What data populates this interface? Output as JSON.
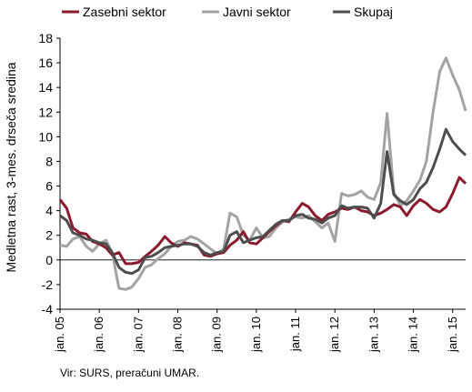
{
  "chart_data": {
    "type": "line",
    "title": "",
    "ylabel": "Medletna rast, 3-mes. drseča sredina",
    "xlabel": "",
    "ylim": [
      -4,
      18
    ],
    "yticks": [
      -4,
      -2,
      0,
      2,
      4,
      6,
      8,
      10,
      12,
      14,
      16,
      18
    ],
    "xlim": [
      2005.0,
      2015.33
    ],
    "x_tick_labels": [
      "jan. 05",
      "jan. 06",
      "jan. 07",
      "jan. 08",
      "jan. 09",
      "jan. 10",
      "jan. 11",
      "jan. 12",
      "jan. 13",
      "jan. 14",
      "jan. 15"
    ],
    "x_tick_values": [
      2005,
      2006,
      2007,
      2008,
      2009,
      2010,
      2011,
      2012,
      2013,
      2014,
      2015
    ],
    "legend_position": "top",
    "grid": false,
    "x": [
      2005.0,
      2005.17,
      2005.33,
      2005.5,
      2005.67,
      2005.83,
      2006.0,
      2006.17,
      2006.33,
      2006.5,
      2006.67,
      2006.83,
      2007.0,
      2007.17,
      2007.33,
      2007.5,
      2007.67,
      2007.83,
      2008.0,
      2008.17,
      2008.33,
      2008.5,
      2008.67,
      2008.83,
      2009.0,
      2009.17,
      2009.33,
      2009.5,
      2009.67,
      2009.83,
      2010.0,
      2010.17,
      2010.33,
      2010.5,
      2010.67,
      2010.83,
      2011.0,
      2011.17,
      2011.33,
      2011.5,
      2011.67,
      2011.83,
      2012.0,
      2012.17,
      2012.33,
      2012.5,
      2012.67,
      2012.83,
      2013.0,
      2013.17,
      2013.33,
      2013.5,
      2013.67,
      2013.83,
      2014.0,
      2014.17,
      2014.33,
      2014.5,
      2014.67,
      2014.83,
      2015.0,
      2015.17,
      2015.33
    ],
    "series": [
      {
        "name": "Zasebni sektor",
        "color": "#8b1a2e",
        "values": [
          4.9,
          4.2,
          2.6,
          2.2,
          2.1,
          1.5,
          1.3,
          1.0,
          0.4,
          0.6,
          -0.3,
          -0.3,
          -0.2,
          0.3,
          0.7,
          1.2,
          1.9,
          1.4,
          1.1,
          1.4,
          1.3,
          1.2,
          0.4,
          0.3,
          0.5,
          0.6,
          1.2,
          1.6,
          2.3,
          1.4,
          1.3,
          1.8,
          2.3,
          2.8,
          3.2,
          3.1,
          3.9,
          4.6,
          4.3,
          3.6,
          3.2,
          3.7,
          3.9,
          4.2,
          4.1,
          4.3,
          4.0,
          3.9,
          3.6,
          3.8,
          4.1,
          4.5,
          4.3,
          3.6,
          4.4,
          4.9,
          4.6,
          4.1,
          3.9,
          4.3,
          5.4,
          6.7,
          6.2
        ]
      },
      {
        "name": "Javni sektor",
        "color": "#a3a3a3",
        "values": [
          1.2,
          1.1,
          1.7,
          1.9,
          1.1,
          0.7,
          1.3,
          1.6,
          0.6,
          -2.3,
          -2.4,
          -2.2,
          -1.5,
          -0.6,
          -0.4,
          0.1,
          0.5,
          1.1,
          1.5,
          1.6,
          1.9,
          1.7,
          1.3,
          0.9,
          0.5,
          0.9,
          3.8,
          3.5,
          2.0,
          1.6,
          2.6,
          1.8,
          1.9,
          2.6,
          3.1,
          3.3,
          3.5,
          3.4,
          3.6,
          3.1,
          2.6,
          3.0,
          1.5,
          5.4,
          5.2,
          5.3,
          5.6,
          5.1,
          4.9,
          6.3,
          11.9,
          5.5,
          4.4,
          4.8,
          5.6,
          6.5,
          8.0,
          12.0,
          15.3,
          16.4,
          15.0,
          13.8,
          12.1
        ]
      },
      {
        "name": "Skupaj",
        "color": "#4d4d4d",
        "values": [
          3.6,
          3.2,
          2.2,
          2.0,
          1.7,
          1.6,
          1.4,
          1.3,
          0.6,
          -0.6,
          -1.0,
          -1.1,
          -0.8,
          0.2,
          0.3,
          0.6,
          1.0,
          1.1,
          1.2,
          1.3,
          1.3,
          1.1,
          0.6,
          0.4,
          0.6,
          0.7,
          2.0,
          2.3,
          1.4,
          1.6,
          1.8,
          1.9,
          2.4,
          2.9,
          3.2,
          3.2,
          3.6,
          3.7,
          3.4,
          3.3,
          3.0,
          3.4,
          3.6,
          4.4,
          4.2,
          4.3,
          4.3,
          4.2,
          3.4,
          4.6,
          8.8,
          5.3,
          4.8,
          4.5,
          4.9,
          5.8,
          6.3,
          7.5,
          9.0,
          10.6,
          9.6,
          9.0,
          8.5
        ]
      }
    ]
  },
  "source_note": "Vir: SURS, preračuni UMAR."
}
